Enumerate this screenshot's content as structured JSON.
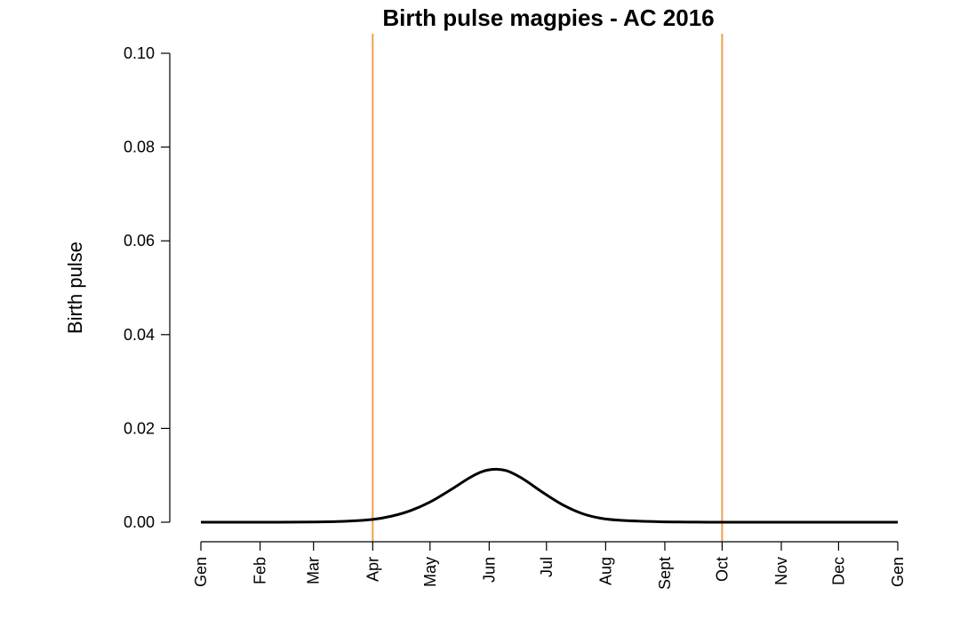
{
  "chart_data": {
    "type": "line",
    "title": "Birth pulse magpies - AC 2016",
    "xlabel": "",
    "ylabel": "Birth pulse",
    "ylim": [
      0,
      0.1
    ],
    "xlim": [
      0,
      365
    ],
    "y_ticks": [
      0.0,
      0.02,
      0.04,
      0.06,
      0.08,
      0.1
    ],
    "y_tick_labels": [
      "0.00",
      "0.02",
      "0.04",
      "0.06",
      "0.08",
      "0.10"
    ],
    "x_ticks": [
      0,
      31,
      59,
      90,
      120,
      151,
      181,
      212,
      243,
      273,
      304,
      334,
      365
    ],
    "x_tick_labels": [
      "Gen",
      "Feb",
      "Mar",
      "Apr",
      "May",
      "Jun",
      "Jul",
      "Aug",
      "Sept",
      "Oct",
      "Nov",
      "Dec",
      "Gen"
    ],
    "vertical_lines": [
      {
        "x": 90,
        "color": "#f0a150"
      },
      {
        "x": 273,
        "color": "#f0a150"
      }
    ],
    "series": [
      {
        "color": "#000000",
        "x": [
          0,
          30,
          60,
          75,
          90,
          100,
          110,
          120,
          130,
          140,
          145,
          150,
          155,
          160,
          165,
          170,
          180,
          190,
          200,
          210,
          220,
          240,
          260,
          273,
          300,
          330,
          365
        ],
        "y": [
          0.0,
          0.0,
          5e-05,
          0.0002,
          0.0006,
          0.0013,
          0.0025,
          0.0043,
          0.0067,
          0.0093,
          0.0104,
          0.0111,
          0.0113,
          0.011,
          0.0101,
          0.0089,
          0.0061,
          0.0036,
          0.0018,
          0.0008,
          0.0004,
          0.0001,
          2e-05,
          0.0,
          0.0,
          0.0,
          0.0
        ]
      }
    ]
  }
}
